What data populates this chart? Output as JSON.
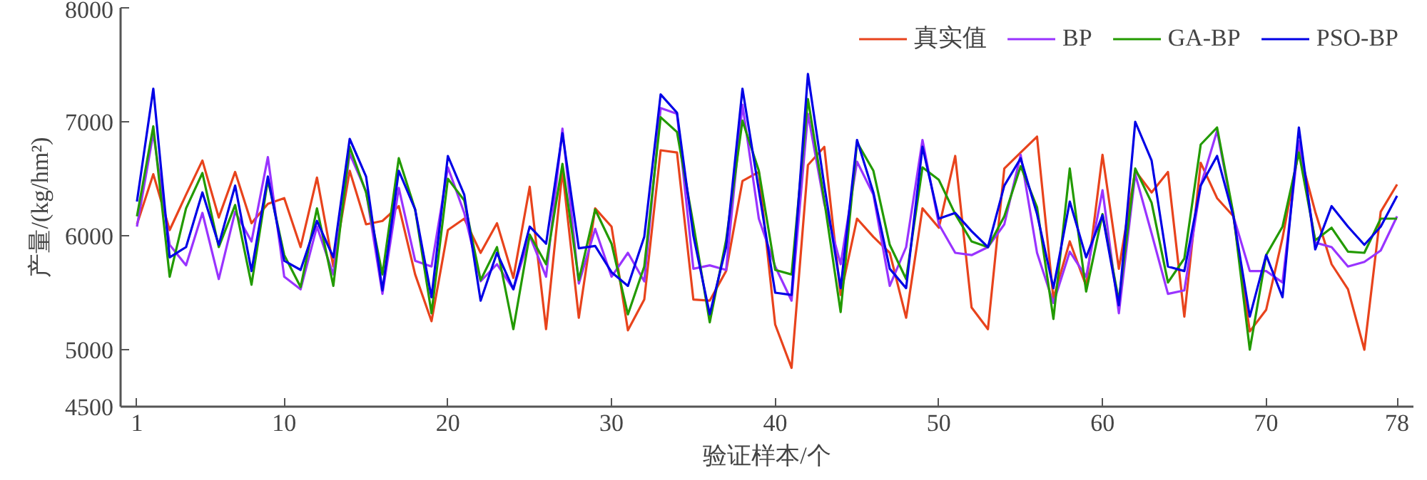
{
  "chart_data": {
    "type": "line",
    "xlabel": "验证样本/个",
    "ylabel": "产量/(kg/hm²)",
    "x": [
      1,
      2,
      3,
      4,
      5,
      6,
      7,
      8,
      9,
      10,
      11,
      12,
      13,
      14,
      15,
      16,
      17,
      18,
      19,
      20,
      21,
      22,
      23,
      24,
      25,
      26,
      27,
      28,
      29,
      30,
      31,
      32,
      33,
      34,
      35,
      36,
      37,
      38,
      39,
      40,
      41,
      42,
      43,
      44,
      45,
      46,
      47,
      48,
      49,
      50,
      51,
      52,
      53,
      54,
      55,
      56,
      57,
      58,
      59,
      60,
      61,
      62,
      63,
      64,
      65,
      66,
      67,
      68,
      69,
      70,
      71,
      72,
      73,
      74,
      75,
      76,
      77,
      78
    ],
    "xlim": [
      0,
      79
    ],
    "xticks": [
      1,
      10,
      20,
      30,
      40,
      50,
      60,
      70,
      78
    ],
    "ylim": [
      4500,
      8000
    ],
    "yticks": [
      4500,
      5000,
      6000,
      7000,
      8000
    ],
    "grid": false,
    "legend": "top right",
    "marker": "none",
    "line_style": "solid",
    "series": [
      {
        "name": "真实值",
        "color": "#e8431c",
        "values": [
          6100,
          6540,
          6050,
          6360,
          6660,
          6160,
          6560,
          6110,
          6280,
          6330,
          5900,
          6510,
          5730,
          6570,
          6100,
          6130,
          6260,
          5660,
          5250,
          6050,
          6150,
          5850,
          6110,
          5630,
          6430,
          5180,
          6570,
          5280,
          6240,
          6080,
          5170,
          5440,
          6750,
          6730,
          5440,
          5430,
          5690,
          6480,
          6560,
          5220,
          4840,
          6620,
          6780,
          5480,
          6150,
          5990,
          5850,
          5280,
          6240,
          6070,
          6700,
          5370,
          5180,
          6590,
          6730,
          6870,
          5450,
          5950,
          5560,
          6710,
          5710,
          6570,
          6380,
          6560,
          5290,
          6640,
          6330,
          6170,
          5160,
          5350,
          5980,
          6750,
          6210,
          5750,
          5530,
          5000,
          6210,
          6450
        ]
      },
      {
        "name": "BP",
        "color": "#9933ff",
        "values": [
          6080,
          6900,
          5920,
          5740,
          6200,
          5620,
          6210,
          5950,
          6690,
          5640,
          5530,
          6080,
          5660,
          6720,
          6390,
          5490,
          6420,
          5780,
          5730,
          6600,
          6200,
          5600,
          5750,
          5530,
          6000,
          5640,
          6940,
          5580,
          6060,
          5640,
          5850,
          5600,
          7120,
          7070,
          5710,
          5740,
          5700,
          7150,
          6150,
          5730,
          5430,
          7070,
          6280,
          5750,
          6650,
          6360,
          5560,
          5900,
          6840,
          6100,
          5850,
          5830,
          5900,
          6100,
          6710,
          5850,
          5410,
          5860,
          5640,
          6400,
          5320,
          6540,
          6020,
          5490,
          5520,
          6440,
          6920,
          6170,
          5690,
          5690,
          5590,
          6830,
          5940,
          5900,
          5730,
          5770,
          5870,
          6170
        ]
      },
      {
        "name": "GA-BP",
        "color": "#229a00",
        "values": [
          6170,
          6960,
          5640,
          6240,
          6550,
          5900,
          6270,
          5570,
          6490,
          5830,
          5550,
          6240,
          5560,
          6780,
          6380,
          5660,
          6680,
          6230,
          5320,
          6500,
          6310,
          5610,
          5900,
          5180,
          6010,
          5750,
          6630,
          5610,
          6230,
          5930,
          5310,
          5730,
          7040,
          6910,
          6100,
          5240,
          5960,
          7010,
          6570,
          5700,
          5660,
          7200,
          6310,
          5330,
          6820,
          6570,
          5920,
          5620,
          6600,
          6490,
          6190,
          5950,
          5900,
          6170,
          6610,
          6250,
          5270,
          6590,
          5510,
          6190,
          5430,
          6590,
          6290,
          5590,
          5800,
          6800,
          6950,
          6190,
          5000,
          5830,
          6080,
          6730,
          5960,
          6070,
          5860,
          5850,
          6150,
          6150
        ]
      },
      {
        "name": "PSO-BP",
        "color": "#0000e6",
        "values": [
          6300,
          7290,
          5810,
          5900,
          6380,
          5920,
          6440,
          5690,
          6520,
          5780,
          5700,
          6130,
          5810,
          6850,
          6520,
          5520,
          6570,
          6230,
          5460,
          6700,
          6360,
          5430,
          5850,
          5530,
          6080,
          5930,
          6900,
          5890,
          5910,
          5680,
          5560,
          5990,
          7240,
          7080,
          6000,
          5310,
          5900,
          7290,
          6400,
          5500,
          5480,
          7420,
          6440,
          5540,
          6840,
          6380,
          5710,
          5540,
          6780,
          6150,
          6200,
          6040,
          5900,
          6440,
          6680,
          6190,
          5540,
          6300,
          5810,
          6180,
          5390,
          7000,
          6660,
          5730,
          5690,
          6440,
          6700,
          6170,
          5290,
          5830,
          5460,
          6950,
          5880,
          6260,
          6080,
          5920,
          6080,
          6350
        ]
      }
    ]
  }
}
